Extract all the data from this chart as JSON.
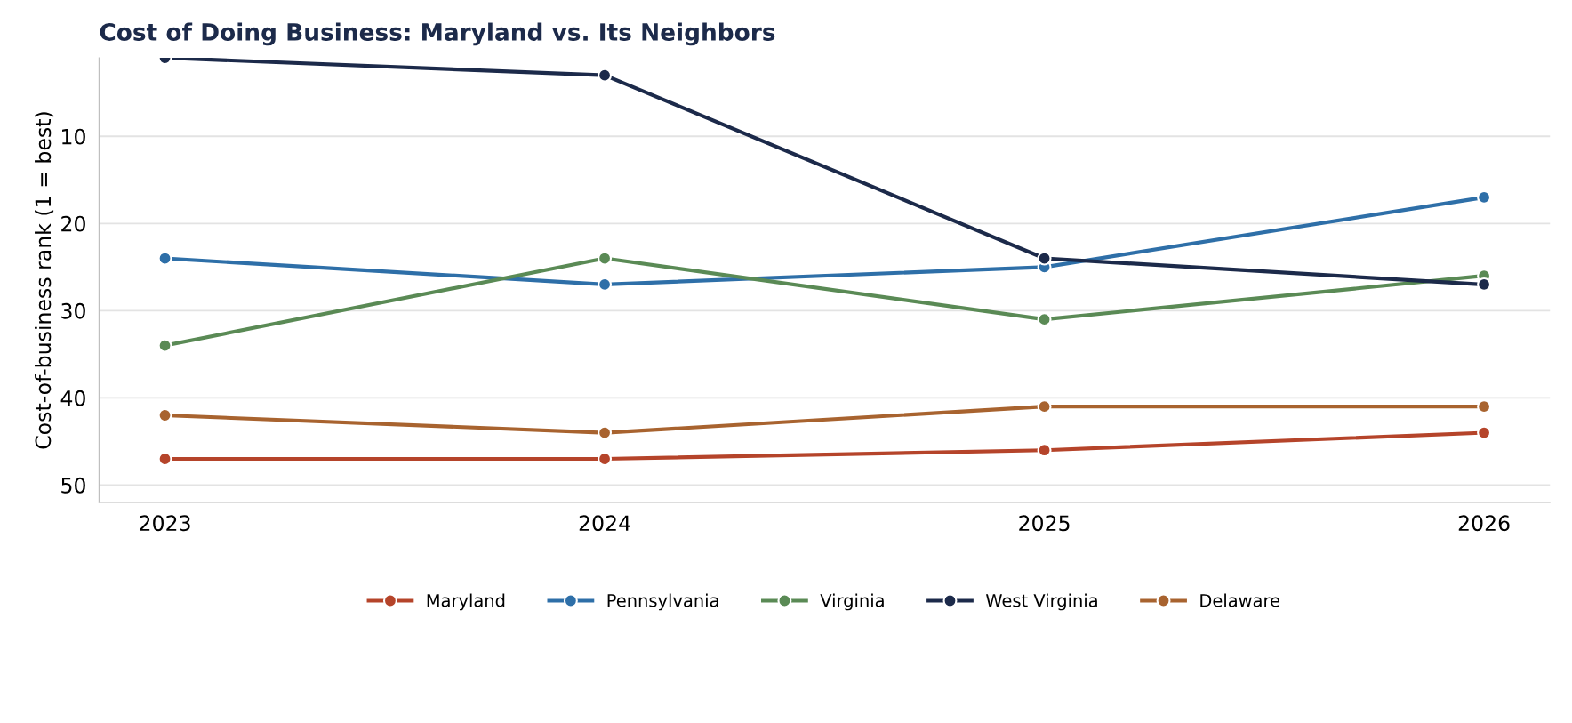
{
  "chart_data": {
    "type": "line",
    "title": "Cost of Doing Business: Maryland vs. Its Neighbors",
    "ylabel": "Cost-of-business rank (1 = best)",
    "categories": [
      "2023",
      "2024",
      "2025",
      "2026"
    ],
    "series": [
      {
        "name": "Maryland",
        "color": "#b5442a",
        "values": [
          47,
          47,
          46,
          44
        ]
      },
      {
        "name": "Pennsylvania",
        "color": "#2e6fa8",
        "values": [
          24,
          27,
          25,
          17
        ]
      },
      {
        "name": "Virginia",
        "color": "#5a8a55",
        "values": [
          34,
          24,
          31,
          26
        ]
      },
      {
        "name": "West Virginia",
        "color": "#1c2a4a",
        "values": [
          1,
          3,
          24,
          27
        ]
      },
      {
        "name": "Delaware",
        "color": "#a8632f",
        "values": [
          42,
          44,
          41,
          41
        ]
      }
    ],
    "ylim": [
      52,
      1
    ],
    "yticks": [
      10,
      20,
      30,
      40,
      50
    ],
    "grid": "y",
    "legend": "bottom",
    "marker": "circle",
    "line_style": "solid"
  }
}
